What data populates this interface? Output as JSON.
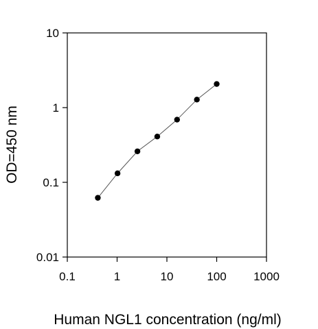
{
  "chart_data": {
    "type": "scatter",
    "title": "",
    "xlabel": "Human NGL1 concentration (ng/ml)",
    "ylabel": "OD=450 nm",
    "xscale": "log",
    "yscale": "log",
    "xlim": [
      0.1,
      1000
    ],
    "ylim": [
      0.01,
      10
    ],
    "x_ticks": [
      0.1,
      1,
      10,
      100,
      1000
    ],
    "x_tick_labels": [
      "0.1",
      "1",
      "10",
      "100",
      "1000"
    ],
    "y_ticks": [
      0.01,
      0.1,
      1,
      10
    ],
    "y_tick_labels": [
      "0.01",
      "0.1",
      "1",
      "10"
    ],
    "grid": false,
    "legend": "none",
    "series": [
      {
        "x": [
          0.41,
          1.02,
          2.56,
          6.4,
          16,
          40,
          100
        ],
        "y": [
          0.062,
          0.132,
          0.26,
          0.41,
          0.69,
          1.28,
          2.07
        ],
        "marker": "filled-circle",
        "fit_line": true
      }
    ],
    "colors": {
      "marker": "#000000",
      "line": "#555555",
      "axis": "#000000"
    }
  }
}
